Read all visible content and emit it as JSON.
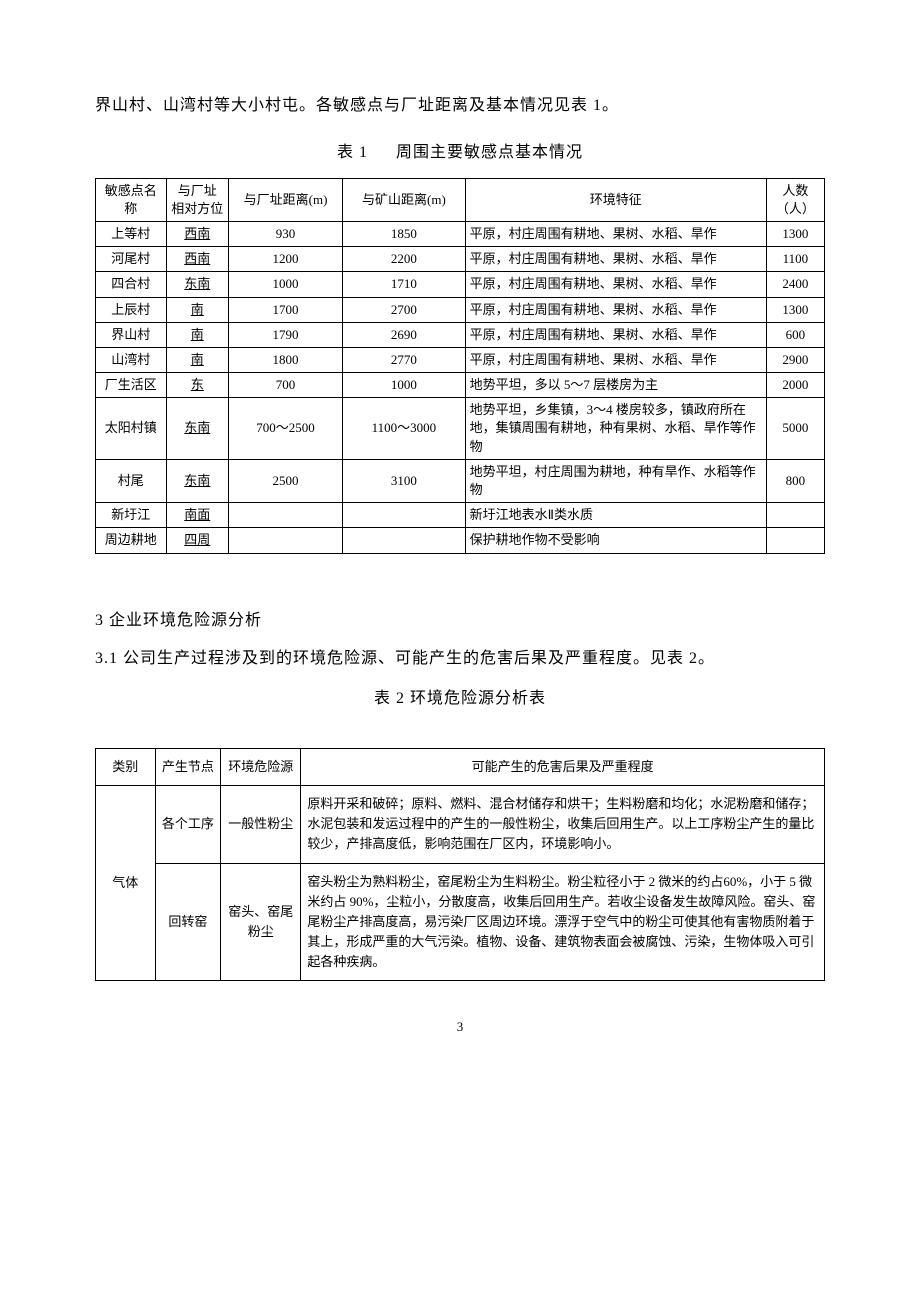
{
  "intro": "界山村、山湾村等大小村屯。各敏感点与厂址距离及基本情况见表 1。",
  "table1": {
    "caption_a": "表 1",
    "caption_b": "周围主要敏感点基本情况",
    "headers": {
      "c1": "敏感点名称",
      "c2a": "与厂址",
      "c2b": "相对方位",
      "c3": "与厂址距离(m)",
      "c4": "与矿山距离(m)",
      "c5": "环境特征",
      "c6a": "人数",
      "c6b": "（人）"
    },
    "rows": [
      {
        "name": "上等村",
        "dir": "西南",
        "d1": "930",
        "d2": "1850",
        "feat": "平原，村庄周围有耕地、果树、水稻、旱作",
        "pop": "1300"
      },
      {
        "name": "河尾村",
        "dir": "西南",
        "d1": "1200",
        "d2": "2200",
        "feat": "平原，村庄周围有耕地、果树、水稻、旱作",
        "pop": "1100"
      },
      {
        "name": "四合村",
        "dir": "东南",
        "d1": "1000",
        "d2": "1710",
        "feat": "平原，村庄周围有耕地、果树、水稻、旱作",
        "pop": "2400"
      },
      {
        "name": "上辰村",
        "dir": "南",
        "d1": "1700",
        "d2": "2700",
        "feat": "平原，村庄周围有耕地、果树、水稻、旱作",
        "pop": "1300"
      },
      {
        "name": "界山村",
        "dir": "南",
        "d1": "1790",
        "d2": "2690",
        "feat": "平原，村庄周围有耕地、果树、水稻、旱作",
        "pop": "600"
      },
      {
        "name": "山湾村",
        "dir": "南",
        "d1": "1800",
        "d2": "2770",
        "feat": "平原，村庄周围有耕地、果树、水稻、旱作",
        "pop": "2900"
      },
      {
        "name": "厂生活区",
        "dir": "东",
        "d1": "700",
        "d2": "1000",
        "feat": "地势平坦，多以 5～7 层楼房为主",
        "pop": "2000"
      },
      {
        "name": "太阳村镇",
        "dir": "东南",
        "d1": "700～2500",
        "d2": "1100～3000",
        "feat": "地势平坦，乡集镇，3～4 楼房较多，镇政府所在地，集镇周围有耕地，种有果树、水稻、旱作等作物",
        "pop": "5000"
      },
      {
        "name": "村尾",
        "dir": "东南",
        "d1": "2500",
        "d2": "3100",
        "feat": "地势平坦，村庄周围为耕地，种有旱作、水稻等作物",
        "pop": "800"
      },
      {
        "name": "新圩江",
        "dir": "南面",
        "d1": "",
        "d2": "",
        "feat": "新圩江地表水Ⅱ类水质",
        "pop": ""
      },
      {
        "name": "周边耕地",
        "dir": "四周",
        "d1": "",
        "d2": "",
        "feat": "保护耕地作物不受影响",
        "pop": ""
      }
    ],
    "colwidths": [
      "68",
      "60",
      "110",
      "118",
      "290",
      "56"
    ]
  },
  "sec3_title": "3 企业环境危险源分析",
  "sec31": "3.1 公司生产过程涉及到的环境危险源、可能产生的危害后果及严重程度。见表 2。",
  "table2": {
    "caption": "表 2 环境危险源分析表",
    "headers": {
      "c1": "类别",
      "c2": "产生节点",
      "c3": "环境危险源",
      "c4": "可能产生的危害后果及严重程度"
    },
    "cat": "气体",
    "r1": {
      "node": "各个工序",
      "src": "一般性粉尘",
      "desc": "原料开采和破碎；原料、燃料、混合材储存和烘干；生料粉磨和均化；水泥粉磨和储存；水泥包装和发运过程中的产生的一般性粉尘，收集后回用生产。以上工序粉尘产生的量比较少，产排高度低，影响范围在厂区内，环境影响小。"
    },
    "r2": {
      "node": "回转窑",
      "src": "窑头、窑尾粉尘",
      "desc": "窑头粉尘为熟料粉尘，窑尾粉尘为生料粉尘。粉尘粒径小于 2 微米的约占60%，小于 5 微米约占 90%，尘粒小，分散度高，收集后回用生产。若收尘设备发生故障风险。窑头、窑尾粉尘产排高度高，易污染厂区周边环境。漂浮于空气中的粉尘可使其他有害物质附着于其上，形成严重的大气污染。植物、设备、建筑物表面会被腐蚀、污染，生物体吸入可引起各种疾病。"
    },
    "colwidths": [
      "58",
      "64",
      "78",
      "510"
    ]
  },
  "page_number": "3"
}
